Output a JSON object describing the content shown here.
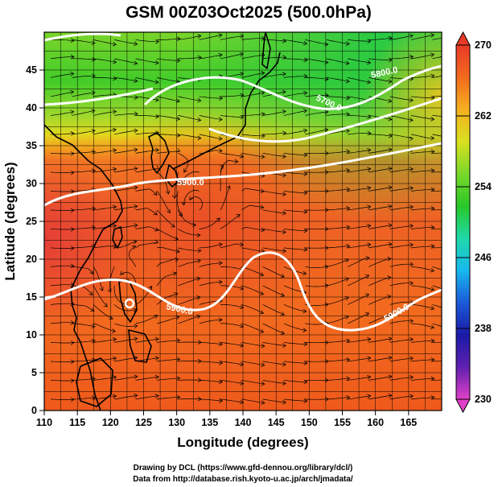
{
  "chart_data": {
    "type": "heatmap",
    "title": "GSM 00Z03Oct2025 (500.0hPa)",
    "xlabel": "Longitude (degrees)",
    "ylabel": "Latitude  (degrees)",
    "xlim": [
      110,
      170
    ],
    "ylim": [
      0,
      50
    ],
    "x_ticks": [
      110,
      115,
      120,
      125,
      130,
      135,
      140,
      145,
      150,
      155,
      160,
      165
    ],
    "y_ticks": [
      0,
      5,
      10,
      15,
      20,
      25,
      30,
      35,
      40,
      45
    ],
    "colorbar": {
      "min": 230,
      "max": 270,
      "ticks": [
        230,
        238,
        246,
        254,
        262,
        270
      ],
      "colors": [
        "#e040c8",
        "#6020b0",
        "#1a1aa8",
        "#1a5ad8",
        "#18b8f0",
        "#20d8a8",
        "#28c828",
        "#7ad82a",
        "#d8e020",
        "#f5b020",
        "#f26a1e",
        "#e83a26"
      ]
    },
    "contour_labels": [
      "5900.0",
      "5900.0",
      "5900.0",
      "5700.0",
      "5800.0"
    ],
    "grid": true
  },
  "credits": {
    "drawing": "Drawing by DCL (https://www.gfd-dennou.org/library/dcl/)",
    "data_from": "Data from http://database.rish.kyoto-u.ac.jp/arch/jmadata/"
  }
}
